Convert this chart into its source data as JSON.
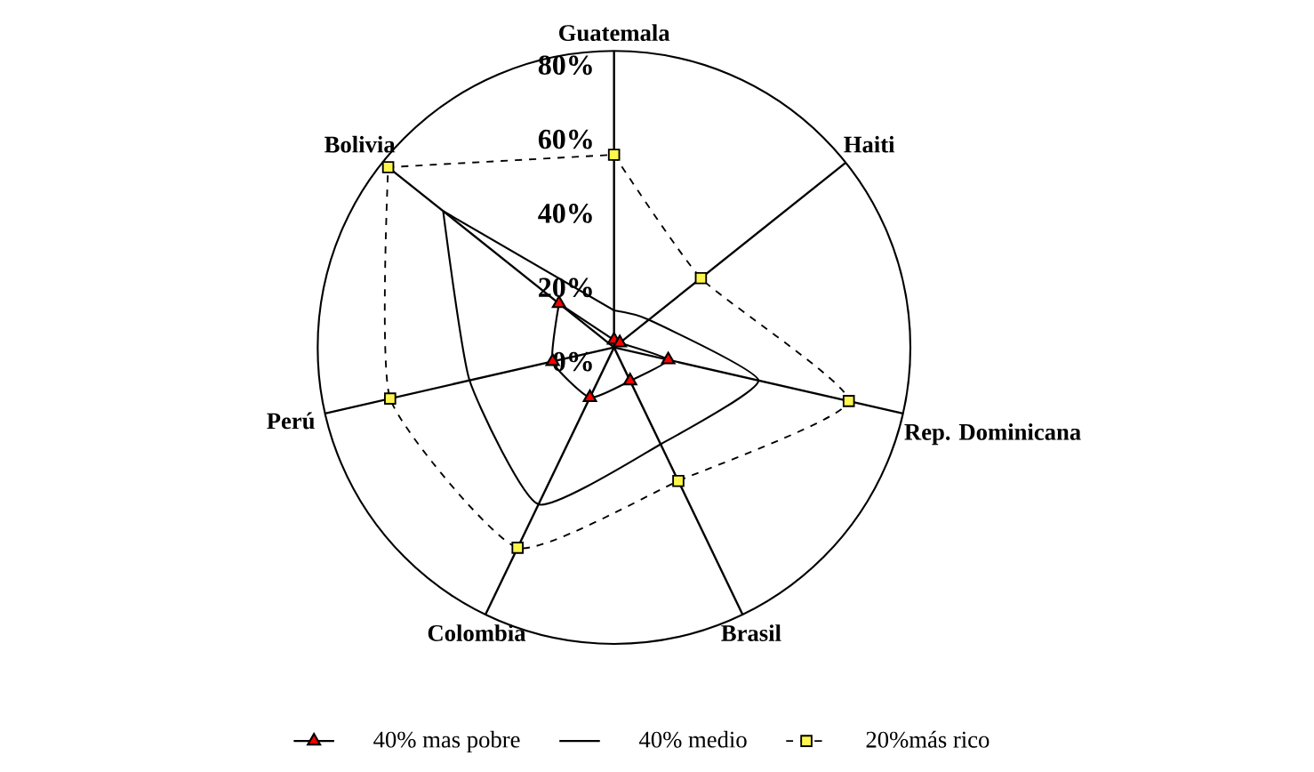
{
  "chart_data": {
    "type": "radar",
    "categories": [
      "Guatemala",
      "Haiti",
      "Rep. Dominicana",
      "Brasil",
      "Colombia",
      "Perú",
      "Bolivia"
    ],
    "series": [
      {
        "name": "40% mas pobre",
        "color": "#000000",
        "marker": "triangle",
        "line_style": "solid",
        "values": [
          2,
          2,
          15,
          10,
          15,
          17,
          19
        ]
      },
      {
        "name": "40% medio",
        "color": "#000000",
        "marker": "none",
        "line_style": "solid",
        "values": [
          10,
          12,
          40,
          29,
          47,
          40,
          59
        ]
      },
      {
        "name": "20%más rico",
        "color": "#000000",
        "marker": "square",
        "line_style": "dashed",
        "values": [
          52,
          30,
          65,
          40,
          60,
          62,
          78
        ]
      }
    ],
    "ylim": [
      0,
      80
    ],
    "yticks": [
      {
        "value": 0,
        "label": "0%"
      },
      {
        "value": 20,
        "label": "20%"
      },
      {
        "value": 40,
        "label": "40%"
      },
      {
        "value": 60,
        "label": "60%"
      },
      {
        "value": 80,
        "label": "80%"
      }
    ],
    "legend": "bottom"
  }
}
